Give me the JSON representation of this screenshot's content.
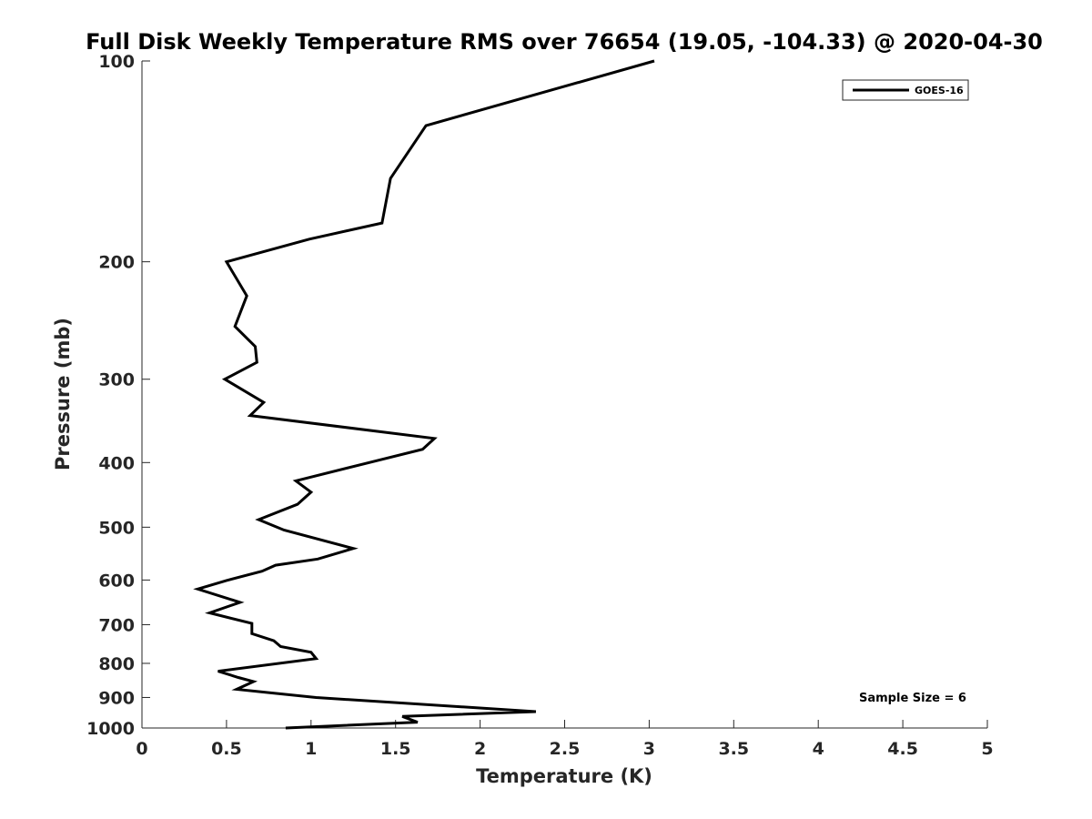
{
  "chart_data": {
    "type": "line",
    "title": "Full Disk Weekly Temperature RMS over 76654 (19.05, -104.33) @ 2020-04-30",
    "xlabel": "Temperature (K)",
    "ylabel": "Pressure (mb)",
    "xlim": [
      0,
      5
    ],
    "ylim": [
      100,
      1000
    ],
    "yscale": "log",
    "yreversed": true,
    "xticks": [
      0,
      0.5,
      1,
      1.5,
      2,
      2.5,
      3,
      3.5,
      4,
      4.5,
      5
    ],
    "xtick_labels": [
      "0",
      "0.5",
      "1",
      "1.5",
      "2",
      "2.5",
      "3",
      "3.5",
      "4",
      "4.5",
      "5"
    ],
    "yticks": [
      100,
      200,
      300,
      400,
      500,
      600,
      700,
      800,
      900,
      1000
    ],
    "ytick_labels": [
      "100",
      "200",
      "300",
      "400",
      "500",
      "600",
      "700",
      "800",
      "900",
      "1000"
    ],
    "grid": false,
    "legend": {
      "placement": "top-right",
      "entries": [
        "GOES-16"
      ]
    },
    "annotation": "Sample Size = 6",
    "series": [
      {
        "name": "GOES-16",
        "color": "#000000",
        "points": [
          [
            3.03,
            100
          ],
          [
            1.68,
            125
          ],
          [
            1.47,
            150
          ],
          [
            1.42,
            175
          ],
          [
            0.99,
            185
          ],
          [
            0.5,
            200
          ],
          [
            0.62,
            225
          ],
          [
            0.55,
            250
          ],
          [
            0.67,
            268
          ],
          [
            0.68,
            283
          ],
          [
            0.49,
            300
          ],
          [
            0.72,
            325
          ],
          [
            0.64,
            340
          ],
          [
            1.73,
            368
          ],
          [
            1.66,
            382
          ],
          [
            0.91,
            426
          ],
          [
            1.0,
            443
          ],
          [
            0.92,
            462
          ],
          [
            0.69,
            487
          ],
          [
            0.84,
            505
          ],
          [
            1.25,
            538
          ],
          [
            1.04,
            558
          ],
          [
            0.79,
            570
          ],
          [
            0.71,
            582
          ],
          [
            0.5,
            601
          ],
          [
            0.33,
            619
          ],
          [
            0.58,
            648
          ],
          [
            0.4,
            672
          ],
          [
            0.65,
            697
          ],
          [
            0.65,
            722
          ],
          [
            0.78,
            740
          ],
          [
            0.82,
            755
          ],
          [
            1.0,
            770
          ],
          [
            1.03,
            787
          ],
          [
            0.45,
            822
          ],
          [
            0.57,
            840
          ],
          [
            0.66,
            852
          ],
          [
            0.56,
            875
          ],
          [
            1.03,
            900
          ],
          [
            2.33,
            945
          ],
          [
            1.54,
            961
          ],
          [
            1.63,
            980
          ],
          [
            0.85,
            1000
          ]
        ]
      }
    ]
  }
}
